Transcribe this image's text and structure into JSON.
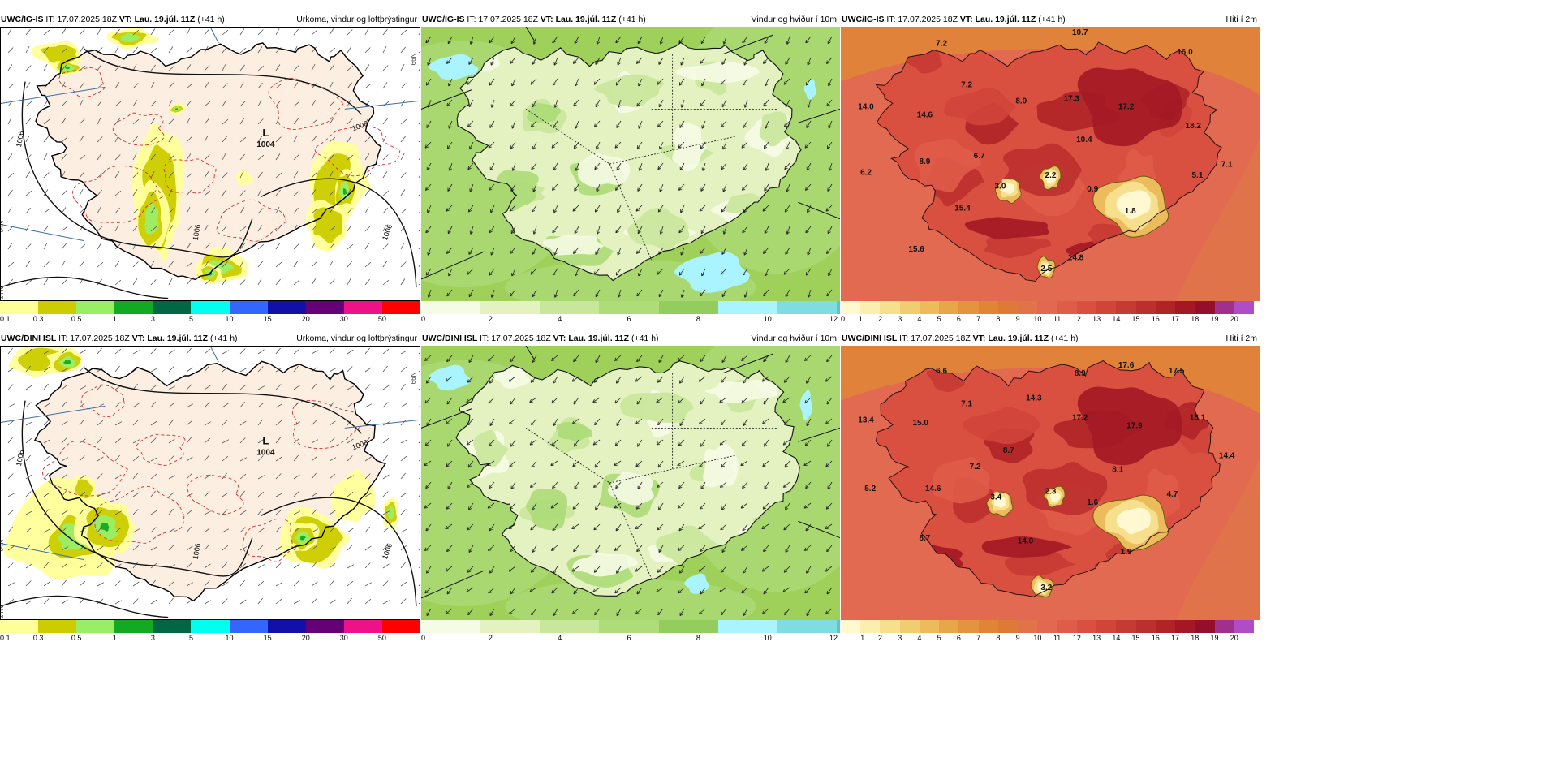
{
  "rows": [
    {
      "model": "UWC/IG-IS",
      "panels": [
        {
          "type": "precip",
          "header": {
            "model": "UWC/IG-IS",
            "it_label": "IT:",
            "it": "17.07.2025 18Z",
            "vt_label": "VT:",
            "vt": "Lau. 19.júl. 11Z",
            "lead": "(+41 h)",
            "title": "Úrkoma, vindur og loftþrýstingur"
          },
          "low": {
            "letter": "L",
            "value": "1004"
          },
          "isobars": [
            "1006",
            "1006",
            "1006",
            "1006"
          ],
          "edge_labels": [
            "66N",
            "64N",
            "24W"
          ],
          "legend": [
            "0.1",
            "0.3",
            "0.5",
            "1",
            "3",
            "5",
            "10",
            "15",
            "20",
            "30",
            "50"
          ],
          "variant": "a"
        },
        {
          "type": "wind",
          "header": {
            "model": "UWC/IG-IS",
            "it_label": "IT:",
            "it": "17.07.2025 18Z",
            "vt_label": "VT:",
            "vt": "Lau. 19.júl. 11Z",
            "lead": "(+41 h)",
            "title": "Vindur og hviður í 10m"
          },
          "legend": [
            "0",
            "2",
            "4",
            "6",
            "8",
            "10",
            "12"
          ],
          "variant": "a"
        },
        {
          "type": "temp",
          "header": {
            "model": "UWC/IG-IS",
            "it_label": "IT:",
            "it": "17.07.2025 18Z",
            "vt_label": "VT:",
            "vt": "Lau. 19.júl. 11Z",
            "lead": "(+41 h)",
            "title": "Hiti í 2m"
          },
          "values": [
            "7.2",
            "10.7",
            "16.0",
            "7.2",
            "14.0",
            "14.6",
            "8.0",
            "17.3",
            "17.2",
            "18.2",
            "10.4",
            "8.9",
            "6.7",
            "6.2",
            "3.0",
            "2.2",
            "0.9",
            "5.1",
            "7.1",
            "1.8",
            "15.4",
            "15.6",
            "14.8",
            "2.5"
          ],
          "legend": [
            "0",
            "1",
            "2",
            "3",
            "4",
            "5",
            "6",
            "7",
            "8",
            "9",
            "10",
            "11",
            "12",
            "13",
            "14",
            "15",
            "16",
            "17",
            "18",
            "19",
            "20"
          ],
          "variant": "a"
        }
      ]
    },
    {
      "model": "UWC/DINI ISL",
      "panels": [
        {
          "type": "precip",
          "header": {
            "model": "UWC/DINI ISL",
            "it_label": "IT:",
            "it": "17.07.2025 18Z",
            "vt_label": "VT:",
            "vt": "Lau. 19.júl. 11Z",
            "lead": "(+41 h)",
            "title": "Úrkoma, vindur og loftþrýstingur"
          },
          "low": {
            "letter": "L",
            "value": "1004"
          },
          "isobars": [
            "1006",
            "1006",
            "1006",
            "1006"
          ],
          "edge_labels": [
            "66N",
            "64N",
            "24W"
          ],
          "legend": [
            "0.1",
            "0.3",
            "0.5",
            "1",
            "3",
            "5",
            "10",
            "15",
            "20",
            "30",
            "50"
          ],
          "variant": "b"
        },
        {
          "type": "wind",
          "header": {
            "model": "UWC/DINI ISL",
            "it_label": "IT:",
            "it": "17.07.2025 18Z",
            "vt_label": "VT:",
            "vt": "Lau. 19.júl. 11Z",
            "lead": "(+41 h)",
            "title": "Vindur og hviður í 10m"
          },
          "legend": [
            "0",
            "2",
            "4",
            "6",
            "8",
            "10",
            "12"
          ],
          "variant": "b"
        },
        {
          "type": "temp",
          "header": {
            "model": "UWC/DINI ISL",
            "it_label": "IT:",
            "it": "17.07.2025 18Z",
            "vt_label": "VT:",
            "vt": "Lau. 19.júl. 11Z",
            "lead": "(+41 h)",
            "title": "Hiti í 2m"
          },
          "values": [
            "6.6",
            "8.9",
            "17.6",
            "17.5",
            "7.1",
            "14.3",
            "13.4",
            "15.0",
            "17.2",
            "17.9",
            "18.1",
            "8.7",
            "14.4",
            "7.2",
            "8.1",
            "5.2",
            "14.6",
            "3.4",
            "2.3",
            "1.6",
            "4.7",
            "8.7",
            "14.0",
            "1.9",
            "3.2"
          ],
          "legend": [
            "1",
            "2",
            "3",
            "4",
            "5",
            "6",
            "7",
            "8",
            "9",
            "10",
            "11",
            "12",
            "13",
            "14",
            "15",
            "16",
            "17",
            "18",
            "19",
            "20"
          ],
          "variant": "b"
        }
      ]
    }
  ],
  "colors": {
    "precip_scale": [
      "#ffff99",
      "#cccc00",
      "#99ee66",
      "#11aa22",
      "#006644",
      "#00ffee",
      "#3366ff",
      "#1111aa",
      "#660077",
      "#ee1188",
      "#ff0000"
    ],
    "wind_scale": [
      "#f6fbe6",
      "#e3f2c0",
      "#c9e79a",
      "#addc78",
      "#92cd5e",
      "#aaf4ff",
      "#7fdde2",
      "#5cc5c8"
    ],
    "temp_scale": [
      "#fff8d0",
      "#fbeeae",
      "#f6e08e",
      "#f0cd72",
      "#ebbb5c",
      "#e7a64a",
      "#e4943e",
      "#e08536",
      "#dd7a36",
      "#e07448",
      "#e26850",
      "#df5c48",
      "#d94f40",
      "#d0443a",
      "#c63a34",
      "#bb2f2e",
      "#b02428",
      "#a31824",
      "#950f2c",
      "#a0308a",
      "#b04cc6"
    ],
    "land_precip": "#fdeee2",
    "sea_wind": "#9fd05a",
    "sea_temp": "#e26a50"
  }
}
